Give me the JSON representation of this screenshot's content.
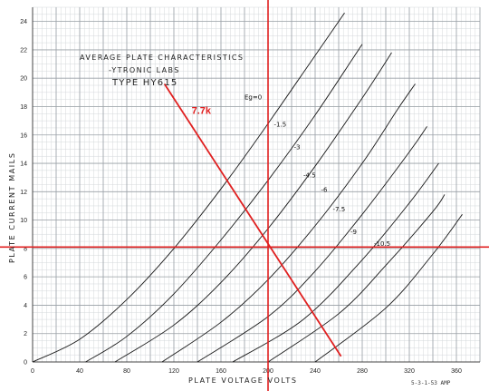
{
  "chart_data": {
    "type": "line",
    "title_lines": [
      "AVERAGE PLATE CHARACTERISTICS",
      "-YTRONIC LABS",
      "TYPE HY615"
    ],
    "xlabel": "PLATE VOLTAGE VOLTS",
    "ylabel": "PLATE CURRENT MAILS",
    "xlim": [
      0,
      380
    ],
    "ylim": [
      0,
      25
    ],
    "xticks": [
      0,
      40,
      80,
      120,
      160,
      200,
      240,
      280,
      320,
      360
    ],
    "yticks": [
      0,
      2,
      4,
      6,
      8,
      10,
      12,
      14,
      16,
      18,
      20,
      22,
      24
    ],
    "x_tick_labels": [
      "0",
      "40",
      "80",
      "120",
      "160",
      "200",
      "240",
      "280",
      "320",
      "360"
    ],
    "y_tick_labels": [
      "0",
      "2",
      "4",
      "6",
      "8",
      "10",
      "12",
      "14",
      "16",
      "18",
      "20",
      "22",
      "24"
    ],
    "grid": true,
    "series": [
      {
        "name": "Eg=0",
        "values": [
          [
            0,
            0
          ],
          [
            40,
            1.6
          ],
          [
            80,
            4.4
          ],
          [
            120,
            8.0
          ],
          [
            160,
            12.2
          ],
          [
            200,
            16.8
          ],
          [
            240,
            21.6
          ],
          [
            265,
            24.6
          ]
        ]
      },
      {
        "name": "-1.5",
        "values": [
          [
            45,
            0
          ],
          [
            80,
            1.8
          ],
          [
            120,
            4.8
          ],
          [
            160,
            8.6
          ],
          [
            200,
            12.8
          ],
          [
            240,
            17.4
          ],
          [
            280,
            22.4
          ]
        ]
      },
      {
        "name": "-3",
        "values": [
          [
            70,
            0
          ],
          [
            120,
            2.6
          ],
          [
            160,
            5.6
          ],
          [
            200,
            9.4
          ],
          [
            240,
            13.8
          ],
          [
            280,
            18.6
          ],
          [
            305,
            21.8
          ]
        ]
      },
      {
        "name": "-4.5",
        "values": [
          [
            110,
            0
          ],
          [
            160,
            2.8
          ],
          [
            200,
            5.8
          ],
          [
            240,
            9.6
          ],
          [
            280,
            14.0
          ],
          [
            310,
            17.8
          ],
          [
            325,
            19.6
          ]
        ]
      },
      {
        "name": "-6",
        "values": [
          [
            140,
            0
          ],
          [
            200,
            3.2
          ],
          [
            240,
            6.4
          ],
          [
            280,
            10.4
          ],
          [
            320,
            14.8
          ],
          [
            335,
            16.6
          ]
        ]
      },
      {
        "name": "-7.5",
        "values": [
          [
            170,
            0
          ],
          [
            230,
            3.0
          ],
          [
            280,
            7.2
          ],
          [
            320,
            11.2
          ],
          [
            345,
            14.0
          ]
        ]
      },
      {
        "name": "-9",
        "values": [
          [
            200,
            0
          ],
          [
            260,
            3.4
          ],
          [
            300,
            6.8
          ],
          [
            340,
            10.6
          ],
          [
            350,
            11.8
          ]
        ]
      },
      {
        "name": "-10.5",
        "values": [
          [
            240,
            0
          ],
          [
            300,
            3.8
          ],
          [
            340,
            7.6
          ],
          [
            365,
            10.4
          ]
        ]
      }
    ],
    "load_line": {
      "label": "7.7k",
      "from": [
        112,
        19.6
      ],
      "to": [
        262,
        0.4
      ]
    },
    "reference_lines": {
      "vertical_x": 200,
      "horizontal_y": 8.1
    },
    "stamp": "5-3-1-53 AMP"
  },
  "colors": {
    "grid_major": "#9aa0a6",
    "grid_minor": "#d4d8db",
    "curve": "#1a1a1a",
    "overlay": "#e02020",
    "background": "#ffffff"
  }
}
